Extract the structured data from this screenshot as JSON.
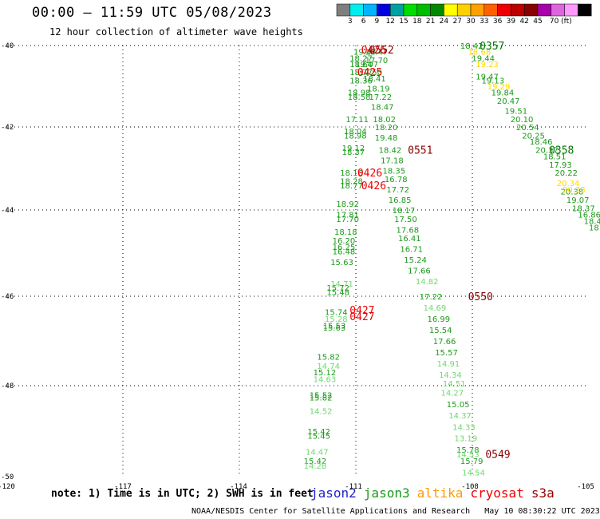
{
  "header": {
    "title": "00:00 – 11:59 UTC 05/08/2023",
    "subtitle": "12 hour collection of altimeter wave heights"
  },
  "legend": {
    "colors": [
      "#7f7f7f",
      "#00eeee",
      "#00b4ff",
      "#0000dd",
      "#00a0a0",
      "#00dd00",
      "#00bb00",
      "#008800",
      "#ffff00",
      "#ffd000",
      "#ffa000",
      "#ff6000",
      "#ee0000",
      "#bb0000",
      "#880000",
      "#aa00aa",
      "#dd66dd",
      "#ff99ff",
      "#000000"
    ],
    "ticks": [
      "3",
      "6",
      "9",
      "12",
      "15",
      "18",
      "21",
      "24",
      "27",
      "30",
      "33",
      "36",
      "39",
      "42",
      "45",
      "70 (ft)"
    ]
  },
  "chart_data": {
    "type": "scatter",
    "title": "00:00 – 11:59 UTC 05/08/2023",
    "subtitle": "12 hour collection of altimeter wave heights",
    "xlim": [
      -120,
      -105
    ],
    "ylim": [
      -50,
      -40
    ],
    "x_ticks": [
      "-120",
      "-117",
      "-114",
      "-111",
      "-108",
      "-105"
    ],
    "y_ticks": [
      "-40",
      "-42",
      "-44",
      "-46",
      "-48",
      "-50"
    ],
    "grid": true,
    "series": [
      {
        "name": "jason3",
        "color": "#1a9a1a",
        "points": [
          {
            "lon": -111.0,
            "lat": -40.15,
            "v": "19.47"
          },
          {
            "lon": -110.7,
            "lat": -40.15,
            "v": "18.47"
          },
          {
            "lon": -111.1,
            "lat": -40.3,
            "v": "18.27"
          },
          {
            "lon": -110.7,
            "lat": -40.35,
            "v": "17.70"
          },
          {
            "lon": -111.1,
            "lat": -40.45,
            "v": "18.64"
          },
          {
            "lon": -110.95,
            "lat": -40.45,
            "v": "19.07"
          },
          {
            "lon": -111.1,
            "lat": -40.65,
            "v": "18.77"
          },
          {
            "lon": -110.85,
            "lat": -40.65,
            "v": "17.50"
          },
          {
            "lon": -111.1,
            "lat": -40.85,
            "v": "18.36"
          },
          {
            "lon": -110.75,
            "lat": -40.8,
            "v": "18.41"
          },
          {
            "lon": -110.65,
            "lat": -41.05,
            "v": "18.19"
          },
          {
            "lon": -111.15,
            "lat": -41.15,
            "v": "18.98"
          },
          {
            "lon": -111.15,
            "lat": -41.25,
            "v": "18.58"
          },
          {
            "lon": -110.6,
            "lat": -41.25,
            "v": "17.22"
          },
          {
            "lon": -110.55,
            "lat": -41.5,
            "v": "18.47"
          },
          {
            "lon": -111.2,
            "lat": -41.8,
            "v": "17.11"
          },
          {
            "lon": -110.5,
            "lat": -41.8,
            "v": "18.02"
          },
          {
            "lon": -110.45,
            "lat": -42.0,
            "v": "18.20"
          },
          {
            "lon": -111.25,
            "lat": -42.1,
            "v": "18.04"
          },
          {
            "lon": -111.25,
            "lat": -42.2,
            "v": "18.98"
          },
          {
            "lon": -110.45,
            "lat": -42.25,
            "v": "19.48"
          },
          {
            "lon": -111.3,
            "lat": -42.5,
            "v": "19.12"
          },
          {
            "lon": -111.3,
            "lat": -42.6,
            "v": "18.37"
          },
          {
            "lon": -110.35,
            "lat": -42.55,
            "v": "18.42"
          },
          {
            "lon": -110.3,
            "lat": -42.8,
            "v": "17.18"
          },
          {
            "lon": -110.25,
            "lat": -43.05,
            "v": "18.35"
          },
          {
            "lon": -111.35,
            "lat": -43.1,
            "v": "18.16"
          },
          {
            "lon": -111.35,
            "lat": -43.3,
            "v": "18.28"
          },
          {
            "lon": -110.2,
            "lat": -43.25,
            "v": "16.78"
          },
          {
            "lon": -111.35,
            "lat": -43.4,
            "v": "18.77"
          },
          {
            "lon": -110.15,
            "lat": -43.5,
            "v": "17.72"
          },
          {
            "lon": -110.1,
            "lat": -43.75,
            "v": "16.85"
          },
          {
            "lon": -111.45,
            "lat": -43.85,
            "v": "18.92"
          },
          {
            "lon": -110.0,
            "lat": -44.0,
            "v": "18.17"
          },
          {
            "lon": -111.45,
            "lat": -44.1,
            "v": "17.81"
          },
          {
            "lon": -111.45,
            "lat": -44.2,
            "v": "17.70"
          },
          {
            "lon": -109.95,
            "lat": -44.2,
            "v": "17.50"
          },
          {
            "lon": -109.9,
            "lat": -44.45,
            "v": "17.68"
          },
          {
            "lon": -111.5,
            "lat": -44.5,
            "v": "18.18"
          },
          {
            "lon": -109.85,
            "lat": -44.65,
            "v": "16.41"
          },
          {
            "lon": -111.55,
            "lat": -44.7,
            "v": "16.20"
          },
          {
            "lon": -111.55,
            "lat": -44.85,
            "v": "16.25"
          },
          {
            "lon": -109.8,
            "lat": -44.9,
            "v": "16.71"
          },
          {
            "lon": -111.55,
            "lat": -44.95,
            "v": "16.48"
          },
          {
            "lon": -109.7,
            "lat": -45.15,
            "v": "15.24"
          },
          {
            "lon": -111.6,
            "lat": -45.2,
            "v": "15.63"
          },
          {
            "lon": -109.6,
            "lat": -45.4,
            "v": "17.66"
          },
          {
            "lon": -111.7,
            "lat": -45.8,
            "v": "15.72"
          },
          {
            "lon": -111.7,
            "lat": -45.9,
            "v": "15.48"
          },
          {
            "lon": -109.3,
            "lat": -46.0,
            "v": "17.22"
          },
          {
            "lon": -111.75,
            "lat": -46.35,
            "v": "15.74"
          },
          {
            "lon": -109.1,
            "lat": -46.5,
            "v": "16.99"
          },
          {
            "lon": -111.8,
            "lat": -46.65,
            "v": "15.53"
          },
          {
            "lon": -111.8,
            "lat": -46.7,
            "v": "15.63"
          },
          {
            "lon": -109.05,
            "lat": -46.75,
            "v": "15.54"
          },
          {
            "lon": -108.95,
            "lat": -47.0,
            "v": "17.66"
          },
          {
            "lon": -108.9,
            "lat": -47.25,
            "v": "15.57"
          },
          {
            "lon": -111.95,
            "lat": -47.35,
            "v": "15.82"
          },
          {
            "lon": -112.05,
            "lat": -47.7,
            "v": "15.12"
          },
          {
            "lon": -112.15,
            "lat": -48.2,
            "v": "15.52"
          },
          {
            "lon": -112.15,
            "lat": -48.25,
            "v": "15.82"
          },
          {
            "lon": -108.6,
            "lat": -48.4,
            "v": "15.05"
          },
          {
            "lon": -112.2,
            "lat": -49.0,
            "v": "15.42"
          },
          {
            "lon": -112.2,
            "lat": -49.1,
            "v": "15.45"
          },
          {
            "lon": -108.35,
            "lat": -49.4,
            "v": "15.78"
          },
          {
            "lon": -108.25,
            "lat": -49.65,
            "v": "15.79"
          },
          {
            "lon": -112.3,
            "lat": -49.65,
            "v": "15.42"
          },
          {
            "lon": -108.25,
            "lat": -40.0,
            "v": "18.42"
          },
          {
            "lon": -107.95,
            "lat": -40.3,
            "v": "19.44"
          },
          {
            "lon": -107.85,
            "lat": -40.75,
            "v": "19.47"
          },
          {
            "lon": -107.7,
            "lat": -40.85,
            "v": "19.13"
          },
          {
            "lon": -107.45,
            "lat": -41.15,
            "v": "19.84"
          },
          {
            "lon": -107.3,
            "lat": -41.35,
            "v": "20.47"
          },
          {
            "lon": -107.1,
            "lat": -41.6,
            "v": "19.51"
          },
          {
            "lon": -106.95,
            "lat": -41.8,
            "v": "20.10"
          },
          {
            "lon": -106.8,
            "lat": -42.0,
            "v": "20.54"
          },
          {
            "lon": -106.65,
            "lat": -42.2,
            "v": "20.25"
          },
          {
            "lon": -106.45,
            "lat": -42.35,
            "v": "18.46"
          },
          {
            "lon": -106.3,
            "lat": -42.55,
            "v": "20.37"
          },
          {
            "lon": -106.1,
            "lat": -42.7,
            "v": "18.51"
          },
          {
            "lon": -105.95,
            "lat": -42.9,
            "v": "17.93"
          },
          {
            "lon": -105.8,
            "lat": -43.1,
            "v": "20.22"
          },
          {
            "lon": -105.65,
            "lat": -43.55,
            "v": "20.38"
          },
          {
            "lon": -105.5,
            "lat": -43.75,
            "v": "19.07"
          },
          {
            "lon": -105.35,
            "lat": -43.95,
            "v": "18.37"
          },
          {
            "lon": -105.2,
            "lat": -44.1,
            "v": "16.86"
          },
          {
            "lon": -105.05,
            "lat": -44.25,
            "v": "18.4"
          },
          {
            "lon": -104.95,
            "lat": -44.4,
            "v": "18"
          }
        ]
      },
      {
        "name": "jason3-light",
        "color": "#6fd86f",
        "points": [
          {
            "lon": -111.6,
            "lat": -45.7,
            "v": "14.71"
          },
          {
            "lon": -109.4,
            "lat": -45.65,
            "v": "14.82"
          },
          {
            "lon": -109.2,
            "lat": -46.25,
            "v": "14.69"
          },
          {
            "lon": -111.75,
            "lat": -46.5,
            "v": "15.28"
          },
          {
            "lon": -108.85,
            "lat": -47.5,
            "v": "14.91"
          },
          {
            "lon": -111.95,
            "lat": -47.55,
            "v": "14.74"
          },
          {
            "lon": -108.8,
            "lat": -47.75,
            "v": "14.34"
          },
          {
            "lon": -112.05,
            "lat": -47.85,
            "v": "14.63"
          },
          {
            "lon": -108.7,
            "lat": -47.95,
            "v": "14.51"
          },
          {
            "lon": -108.75,
            "lat": -48.15,
            "v": "14.27"
          },
          {
            "lon": -112.15,
            "lat": -48.55,
            "v": "14.52"
          },
          {
            "lon": -108.55,
            "lat": -48.65,
            "v": "14.37"
          },
          {
            "lon": -108.45,
            "lat": -48.9,
            "v": "14.33"
          },
          {
            "lon": -108.4,
            "lat": -49.15,
            "v": "13.19"
          },
          {
            "lon": -108.35,
            "lat": -49.5,
            "v": "14.53"
          },
          {
            "lon": -112.25,
            "lat": -49.45,
            "v": "14.47"
          },
          {
            "lon": -112.3,
            "lat": -49.75,
            "v": "14.28"
          },
          {
            "lon": -108.2,
            "lat": -49.9,
            "v": "14.54"
          }
        ]
      },
      {
        "name": "altika",
        "color": "#ffd700",
        "points": [
          {
            "lon": -108.05,
            "lat": -40.15,
            "v": "18.68"
          },
          {
            "lon": -107.85,
            "lat": -40.45,
            "v": "19.23"
          },
          {
            "lon": -107.55,
            "lat": -41.0,
            "v": "19.29"
          },
          {
            "lon": -105.75,
            "lat": -43.35,
            "v": "20.34"
          },
          {
            "lon": -105.6,
            "lat": -43.5,
            "v": "20.28"
          }
        ]
      }
    ],
    "pass_labels": [
      {
        "name": "cryosat",
        "color": "#ee0000",
        "lon": -110.8,
        "lat": -40.1,
        "text": "0426"
      },
      {
        "name": "s3a",
        "color": "#880000",
        "lon": -110.6,
        "lat": -40.1,
        "text": "0552"
      },
      {
        "name": "cryosat",
        "color": "#ee0000",
        "lon": -110.9,
        "lat": -40.65,
        "text": "0425"
      },
      {
        "name": "s3a",
        "color": "#880000",
        "lon": -109.6,
        "lat": -42.55,
        "text": "0551"
      },
      {
        "name": "cryosat",
        "color": "#ee0000",
        "lon": -110.9,
        "lat": -43.1,
        "text": "0426"
      },
      {
        "name": "cryosat",
        "color": "#ee0000",
        "lon": -110.8,
        "lat": -43.4,
        "text": "0426"
      },
      {
        "name": "cryosat",
        "color": "#ee0000",
        "lon": -111.1,
        "lat": -46.3,
        "text": "0427"
      },
      {
        "name": "cryosat",
        "color": "#ee0000",
        "lon": -111.1,
        "lat": -46.45,
        "text": "0427"
      },
      {
        "name": "s3a",
        "color": "#880000",
        "lon": -108.05,
        "lat": -46.0,
        "text": "0550"
      },
      {
        "name": "s3a",
        "color": "#880000",
        "lon": -107.6,
        "lat": -49.5,
        "text": "0549"
      },
      {
        "name": "jason3",
        "color": "#007700",
        "lon": -107.75,
        "lat": -39.97,
        "text": "0357"
      },
      {
        "name": "jason3",
        "color": "#007700",
        "lon": -105.95,
        "lat": -42.55,
        "text": "0358"
      }
    ]
  },
  "footer": {
    "note": "note: 1) Time is in UTC; 2) SWH is in feet",
    "satellites": [
      {
        "label": "jason2",
        "color": "#1f1fcc"
      },
      {
        "label": "jason3",
        "color": "#1a9a1a"
      },
      {
        "label": "altika",
        "color": "#ff9900"
      },
      {
        "label": "cryosat",
        "color": "#ee0000"
      },
      {
        "label": "s3a",
        "color": "#990000"
      }
    ],
    "credit": "NOAA/NESDIS Center for Satellite Applications and Research   May 10 08:30:22 UTC 2023"
  }
}
